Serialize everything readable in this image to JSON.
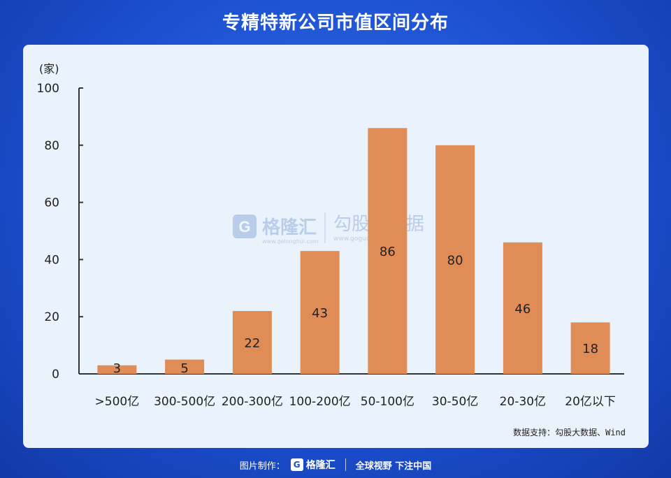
{
  "page": {
    "title": "专精特新公司市值区间分布",
    "source": "数据支持：勾股大数据、Wind",
    "footer_prefix": "图片制作：",
    "footer_logo_text": "格隆汇",
    "footer_slogan": "全球视野 下注中国",
    "watermark_brand": "格隆汇",
    "watermark_brand_url": "www.gelonghui.com",
    "watermark_data": "勾股大数据",
    "watermark_data_url": "www.gogudata.com"
  },
  "chart_data": {
    "type": "bar",
    "title": "专精特新公司市值区间分布",
    "ylabel": "(家)",
    "xlabel": "",
    "categories": [
      ">500亿",
      "300-500亿",
      "200-300亿",
      "100-200亿",
      "50-100亿",
      "30-50亿",
      "20-30亿",
      "20亿以下"
    ],
    "values": [
      3,
      5,
      22,
      43,
      86,
      80,
      46,
      18
    ],
    "ylim": [
      0,
      100
    ],
    "yticks": [
      0,
      20,
      40,
      60,
      80,
      100
    ],
    "bar_color": "#e08c57",
    "grid": false
  }
}
